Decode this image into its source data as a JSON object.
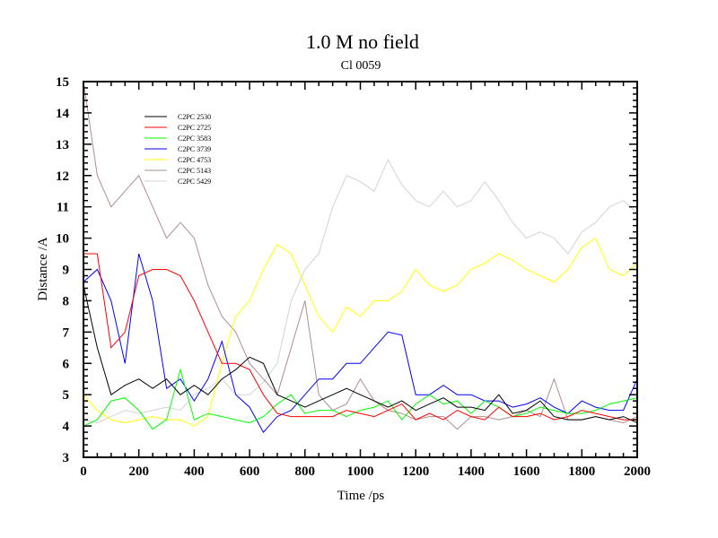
{
  "chart_data": {
    "type": "line",
    "title": "1.0 M no field",
    "subtitle": "Cl 0059",
    "xlabel": "Time /ps",
    "ylabel": "Distance /A",
    "xlim": [
      0,
      2000
    ],
    "ylim": [
      3,
      15
    ],
    "xticks": [
      0,
      200,
      400,
      600,
      800,
      1000,
      1200,
      1400,
      1600,
      1800,
      2000
    ],
    "yticks": [
      3,
      4,
      5,
      6,
      7,
      8,
      9,
      10,
      11,
      12,
      13,
      14,
      15
    ],
    "grid": false,
    "legend_position": "top-left",
    "x": [
      0,
      50,
      100,
      150,
      200,
      250,
      300,
      350,
      400,
      450,
      500,
      550,
      600,
      650,
      700,
      750,
      800,
      850,
      900,
      950,
      1000,
      1050,
      1100,
      1150,
      1200,
      1250,
      1300,
      1350,
      1400,
      1450,
      1500,
      1550,
      1600,
      1650,
      1700,
      1750,
      1800,
      1850,
      1900,
      1950,
      2000
    ],
    "series": [
      {
        "name": "C2PC 2530",
        "color": "#000000",
        "values": [
          8.5,
          6.5,
          5.0,
          5.3,
          5.5,
          5.2,
          5.5,
          5.0,
          5.3,
          5.0,
          5.5,
          5.8,
          6.2,
          6.0,
          5.0,
          4.8,
          4.6,
          4.8,
          5.0,
          5.2,
          5.0,
          4.8,
          4.6,
          4.8,
          4.5,
          4.7,
          4.9,
          4.6,
          4.6,
          4.5,
          5.0,
          4.4,
          4.5,
          4.8,
          4.3,
          4.2,
          4.2,
          4.3,
          4.2,
          4.3,
          4.1
        ]
      },
      {
        "name": "C2PC 2725",
        "color": "#ff0000",
        "values": [
          9.5,
          9.5,
          6.5,
          7.0,
          8.8,
          9.0,
          9.0,
          8.8,
          8.0,
          7.0,
          6.0,
          6.0,
          5.8,
          5.0,
          4.4,
          4.3,
          4.3,
          4.3,
          4.3,
          4.5,
          4.4,
          4.3,
          4.5,
          4.7,
          4.2,
          4.4,
          4.2,
          4.5,
          4.3,
          4.2,
          4.6,
          4.3,
          4.3,
          4.4,
          4.2,
          4.3,
          4.5,
          4.4,
          4.3,
          4.2,
          4.2
        ]
      },
      {
        "name": "C2PC 3583",
        "color": "#00ff00",
        "values": [
          4.0,
          4.2,
          4.8,
          4.9,
          4.5,
          3.9,
          4.2,
          5.8,
          4.2,
          4.4,
          4.3,
          4.2,
          4.1,
          4.3,
          4.7,
          5.0,
          4.4,
          4.5,
          4.5,
          4.3,
          4.5,
          4.6,
          4.8,
          4.2,
          4.7,
          5.0,
          4.7,
          4.8,
          4.4,
          4.8,
          4.6,
          4.3,
          4.4,
          4.6,
          4.5,
          4.4,
          4.4,
          4.5,
          4.7,
          4.8,
          4.9
        ]
      },
      {
        "name": "C2PC 3739",
        "color": "#0000ff",
        "values": [
          8.6,
          9.0,
          8.0,
          6.0,
          9.5,
          8.0,
          5.2,
          5.5,
          4.8,
          5.5,
          6.7,
          5.0,
          4.6,
          3.8,
          4.3,
          4.5,
          5.0,
          5.5,
          5.5,
          6.0,
          6.0,
          6.5,
          7.0,
          6.9,
          5.0,
          5.0,
          5.3,
          5.0,
          5.0,
          4.8,
          4.8,
          4.6,
          4.7,
          4.9,
          4.6,
          4.4,
          4.8,
          4.6,
          4.5,
          4.5,
          5.5
        ]
      },
      {
        "name": "C2PC 4753",
        "color": "#ffff00",
        "values": [
          5.0,
          4.5,
          4.2,
          4.1,
          4.2,
          4.3,
          4.2,
          4.2,
          4.0,
          4.3,
          6.0,
          7.5,
          8.0,
          9.0,
          9.8,
          9.5,
          8.5,
          7.5,
          7.0,
          7.8,
          7.5,
          8.0,
          8.0,
          8.3,
          9.0,
          8.5,
          8.3,
          8.5,
          9.0,
          9.2,
          9.5,
          9.3,
          9.0,
          8.8,
          8.6,
          9.0,
          9.7,
          10.0,
          9.0,
          8.8,
          9.2
        ]
      },
      {
        "name": "C2PC 5143",
        "color": "#b08c8c",
        "values": [
          15.0,
          12.0,
          11.0,
          11.5,
          12.0,
          11.0,
          10.0,
          10.5,
          10.0,
          8.5,
          7.5,
          7.0,
          6.0,
          5.5,
          5.0,
          6.5,
          8.0,
          5.0,
          4.5,
          4.7,
          5.5,
          4.8,
          4.5,
          4.4,
          4.2,
          4.3,
          4.3,
          3.9,
          4.3,
          4.3,
          4.2,
          4.3,
          4.5,
          4.3,
          5.5,
          4.2,
          4.2,
          4.3,
          4.2,
          4.1,
          4.3
        ]
      },
      {
        "name": "C2PC 5429",
        "color": "#d3d3d3",
        "values": [
          4.2,
          4.1,
          4.3,
          4.5,
          4.4,
          4.5,
          4.6,
          4.5,
          5.0,
          5.2,
          5.5,
          5.0,
          5.0,
          5.4,
          6.0,
          8.0,
          9.0,
          9.5,
          11.0,
          12.0,
          11.8,
          11.5,
          12.5,
          11.7,
          11.2,
          11.0,
          11.5,
          11.0,
          11.2,
          11.8,
          11.2,
          10.5,
          10.0,
          10.2,
          10.0,
          9.5,
          10.2,
          10.5,
          11.0,
          11.2,
          10.8
        ]
      }
    ]
  }
}
